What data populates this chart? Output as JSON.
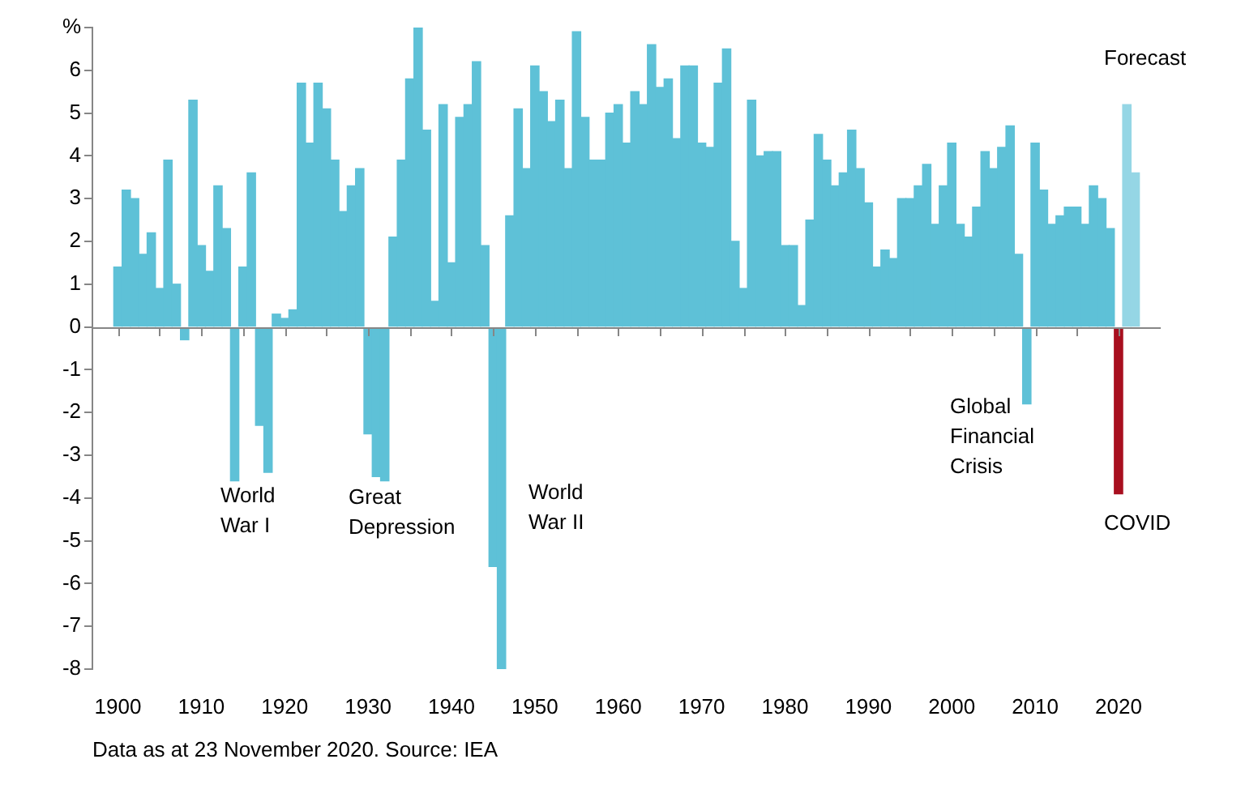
{
  "chart_data": {
    "type": "bar",
    "x": [
      1900,
      1901,
      1902,
      1903,
      1904,
      1905,
      1906,
      1907,
      1908,
      1909,
      1910,
      1911,
      1912,
      1913,
      1914,
      1915,
      1916,
      1917,
      1918,
      1919,
      1920,
      1921,
      1922,
      1923,
      1924,
      1925,
      1926,
      1927,
      1928,
      1929,
      1930,
      1931,
      1932,
      1933,
      1934,
      1935,
      1936,
      1937,
      1938,
      1939,
      1940,
      1941,
      1942,
      1943,
      1944,
      1945,
      1946,
      1947,
      1948,
      1949,
      1950,
      1951,
      1952,
      1953,
      1954,
      1955,
      1956,
      1957,
      1958,
      1959,
      1960,
      1961,
      1962,
      1963,
      1964,
      1965,
      1966,
      1967,
      1968,
      1969,
      1970,
      1971,
      1972,
      1973,
      1974,
      1975,
      1976,
      1977,
      1978,
      1979,
      1980,
      1981,
      1982,
      1983,
      1984,
      1985,
      1986,
      1987,
      1988,
      1989,
      1990,
      1991,
      1992,
      1993,
      1994,
      1995,
      1996,
      1997,
      1998,
      1999,
      2000,
      2001,
      2002,
      2003,
      2004,
      2005,
      2006,
      2007,
      2008,
      2009,
      2010,
      2011,
      2012,
      2013,
      2014,
      2015,
      2016,
      2017,
      2018,
      2019,
      2020,
      2021,
      2022
    ],
    "values": [
      1.4,
      3.2,
      3.0,
      1.7,
      2.2,
      0.9,
      3.9,
      1.0,
      -0.3,
      5.3,
      1.9,
      1.3,
      3.3,
      2.3,
      -3.6,
      1.4,
      3.6,
      -2.3,
      -3.4,
      0.3,
      0.2,
      0.4,
      5.7,
      4.3,
      5.7,
      5.1,
      3.9,
      2.7,
      3.3,
      3.7,
      -2.5,
      -3.5,
      -3.6,
      2.1,
      3.9,
      5.8,
      7.0,
      4.6,
      0.6,
      5.2,
      1.5,
      4.9,
      5.2,
      6.2,
      1.9,
      -5.6,
      -8.0,
      2.6,
      5.1,
      3.7,
      6.1,
      5.5,
      4.8,
      5.3,
      3.7,
      6.9,
      4.9,
      3.9,
      3.9,
      5.0,
      5.2,
      4.3,
      5.5,
      5.2,
      6.6,
      5.6,
      5.8,
      4.4,
      6.1,
      6.1,
      4.3,
      4.2,
      5.7,
      6.5,
      2.0,
      0.9,
      5.3,
      4.0,
      4.1,
      4.1,
      1.9,
      1.9,
      0.5,
      2.5,
      4.5,
      3.9,
      3.3,
      3.6,
      4.6,
      3.7,
      2.9,
      1.4,
      1.8,
      1.6,
      3.0,
      3.0,
      3.3,
      3.8,
      2.4,
      3.3,
      4.3,
      2.4,
      2.1,
      2.8,
      4.1,
      3.7,
      4.2,
      4.7,
      1.7,
      -1.8,
      4.3,
      3.2,
      2.4,
      2.6,
      2.8,
      2.8,
      2.4,
      3.3,
      3.0,
      2.3,
      -3.9,
      5.2,
      3.6
    ],
    "colors": [
      "#5ec1d7",
      "#5ec1d7",
      "#5ec1d7",
      "#5ec1d7",
      "#5ec1d7",
      "#5ec1d7",
      "#5ec1d7",
      "#5ec1d7",
      "#5ec1d7",
      "#5ec1d7",
      "#5ec1d7",
      "#5ec1d7",
      "#5ec1d7",
      "#5ec1d7",
      "#5ec1d7",
      "#5ec1d7",
      "#5ec1d7",
      "#5ec1d7",
      "#5ec1d7",
      "#5ec1d7",
      "#5ec1d7",
      "#5ec1d7",
      "#5ec1d7",
      "#5ec1d7",
      "#5ec1d7",
      "#5ec1d7",
      "#5ec1d7",
      "#5ec1d7",
      "#5ec1d7",
      "#5ec1d7",
      "#5ec1d7",
      "#5ec1d7",
      "#5ec1d7",
      "#5ec1d7",
      "#5ec1d7",
      "#5ec1d7",
      "#5ec1d7",
      "#5ec1d7",
      "#5ec1d7",
      "#5ec1d7",
      "#5ec1d7",
      "#5ec1d7",
      "#5ec1d7",
      "#5ec1d7",
      "#5ec1d7",
      "#5ec1d7",
      "#5ec1d7",
      "#5ec1d7",
      "#5ec1d7",
      "#5ec1d7",
      "#5ec1d7",
      "#5ec1d7",
      "#5ec1d7",
      "#5ec1d7",
      "#5ec1d7",
      "#5ec1d7",
      "#5ec1d7",
      "#5ec1d7",
      "#5ec1d7",
      "#5ec1d7",
      "#5ec1d7",
      "#5ec1d7",
      "#5ec1d7",
      "#5ec1d7",
      "#5ec1d7",
      "#5ec1d7",
      "#5ec1d7",
      "#5ec1d7",
      "#5ec1d7",
      "#5ec1d7",
      "#5ec1d7",
      "#5ec1d7",
      "#5ec1d7",
      "#5ec1d7",
      "#5ec1d7",
      "#5ec1d7",
      "#5ec1d7",
      "#5ec1d7",
      "#5ec1d7",
      "#5ec1d7",
      "#5ec1d7",
      "#5ec1d7",
      "#5ec1d7",
      "#5ec1d7",
      "#5ec1d7",
      "#5ec1d7",
      "#5ec1d7",
      "#5ec1d7",
      "#5ec1d7",
      "#5ec1d7",
      "#5ec1d7",
      "#5ec1d7",
      "#5ec1d7",
      "#5ec1d7",
      "#5ec1d7",
      "#5ec1d7",
      "#5ec1d7",
      "#5ec1d7",
      "#5ec1d7",
      "#5ec1d7",
      "#5ec1d7",
      "#5ec1d7",
      "#5ec1d7",
      "#5ec1d7",
      "#5ec1d7",
      "#5ec1d7",
      "#5ec1d7",
      "#5ec1d7",
      "#5ec1d7",
      "#5ec1d7",
      "#5ec1d7",
      "#5ec1d7",
      "#5ec1d7",
      "#5ec1d7",
      "#5ec1d7",
      "#5ec1d7",
      "#5ec1d7",
      "#5ec1d7",
      "#5ec1d7",
      "#5ec1d7",
      "#a80f1f",
      "#95d6e5",
      "#95d6e5"
    ],
    "xlim": [
      1899.5,
      2022.5
    ],
    "xticks": [
      1900,
      {
        "value": 1905,
        "label": null
      },
      1910,
      {
        "value": 1915,
        "label": null
      },
      1920,
      {
        "value": 1925,
        "label": null
      },
      1930,
      {
        "value": 1935,
        "label": null
      },
      1940,
      {
        "value": 1945,
        "label": null
      },
      1950,
      {
        "value": 1955,
        "label": null
      },
      1960,
      {
        "value": 1965,
        "label": null
      },
      1970,
      {
        "value": 1975,
        "label": null
      },
      1980,
      {
        "value": 1985,
        "label": null
      },
      1990,
      {
        "value": 1995,
        "label": null
      },
      2000,
      {
        "value": 2005,
        "label": null
      },
      2010,
      {
        "value": 2015,
        "label": null
      },
      2020
    ],
    "ylim": [
      -8,
      7
    ],
    "yticks": [
      -8,
      -7,
      -6,
      -5,
      -4,
      -3,
      -2,
      -1,
      0,
      1,
      2,
      3,
      4,
      5,
      6,
      {
        "value": 7,
        "label": "%"
      }
    ],
    "annotations": [
      "World War I",
      "Great Depression",
      "World War II",
      "Global Financial Crisis",
      "COVID",
      "Forecast",
      "Data as at 23 November 2020. Source: IEA"
    ]
  }
}
